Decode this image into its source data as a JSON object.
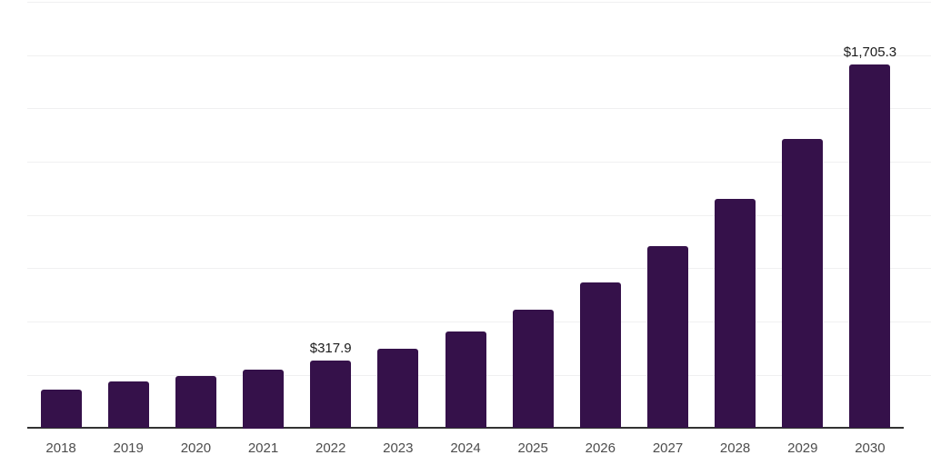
{
  "chart_data": {
    "type": "bar",
    "title": "",
    "xlabel": "",
    "ylabel": "",
    "categories": [
      "2018",
      "2019",
      "2020",
      "2021",
      "2022",
      "2023",
      "2024",
      "2025",
      "2026",
      "2027",
      "2028",
      "2029",
      "2030"
    ],
    "values": [
      182,
      219,
      246,
      277,
      317.9,
      374,
      452,
      554,
      685,
      856,
      1076,
      1357,
      1705.3
    ],
    "data_labels": {
      "2022": "$317.9",
      "2030": "$1,705.3"
    },
    "ylim": [
      0,
      2000
    ],
    "gridline_step": 250,
    "grid": "horizontal",
    "legend": "none",
    "y_axis_labels": "none",
    "colors": {
      "bar": "#35114a",
      "gridline": "#f0f0f1",
      "axis": "#333333",
      "tick_label": "#4d4d4d",
      "data_label": "#1a1a1a",
      "background": "#ffffff"
    }
  }
}
